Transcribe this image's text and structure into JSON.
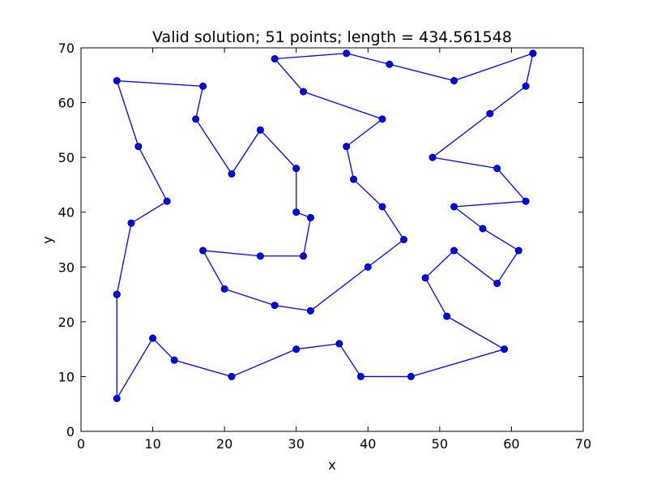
{
  "chart_data": {
    "type": "line",
    "title": "Valid solution; 51 points; length = 434.561548",
    "xlabel": "x",
    "ylabel": "y",
    "xlim": [
      0,
      70
    ],
    "ylim": [
      0,
      70
    ],
    "xticks": [
      "0",
      "10",
      "20",
      "30",
      "40",
      "50",
      "60",
      "70"
    ],
    "yticks": [
      "0",
      "10",
      "20",
      "30",
      "40",
      "50",
      "60",
      "70"
    ],
    "grid": false,
    "color": "#0000ff",
    "marker": "circle",
    "series": [
      {
        "x": [
          5,
          5,
          10,
          13,
          21,
          30,
          36,
          39,
          46,
          59,
          51,
          48,
          52,
          58,
          61,
          56,
          52,
          62,
          58,
          49,
          57,
          62,
          63,
          52,
          43,
          37,
          27,
          31,
          42,
          37,
          38,
          42,
          45,
          40,
          32,
          27,
          20,
          17,
          25,
          31,
          32,
          30,
          30,
          25,
          21,
          16,
          17,
          5,
          8,
          12,
          7,
          5
        ],
        "y": [
          25,
          6,
          17,
          13,
          10,
          15,
          16,
          10,
          10,
          15,
          21,
          28,
          33,
          27,
          33,
          37,
          41,
          42,
          48,
          50,
          58,
          63,
          69,
          64,
          67,
          69,
          68,
          62,
          57,
          52,
          46,
          41,
          35,
          30,
          22,
          23,
          26,
          33,
          32,
          32,
          39,
          40,
          48,
          55,
          47,
          57,
          63,
          64,
          52,
          42,
          38,
          25
        ]
      }
    ]
  }
}
